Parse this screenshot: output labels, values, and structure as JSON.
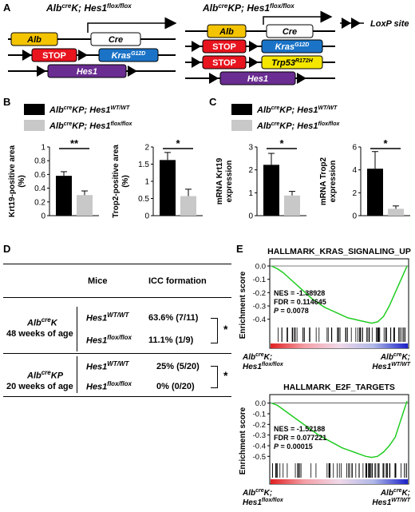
{
  "panel_A": {
    "letter": "A",
    "left_title_pre": "Alb",
    "left_title_sup": "cre",
    "left_title_post": "K; Hes1",
    "left_title_sup2": "flox/flox",
    "right_title_pre": "Alb",
    "right_title_sup": "cre",
    "right_title_post": "KP; Hes1",
    "right_title_sup2": "flox/flox",
    "loxp_label": "LoxP site",
    "boxes": {
      "alb": "Alb",
      "cre": "Cre",
      "stop": "STOP",
      "kras": "Kras",
      "kras_sup": "G12D",
      "trp53": "Trp53",
      "trp53_sup": "R172H",
      "hes1": "Hes1"
    },
    "colors": {
      "alb": "#f5c400",
      "stop": "#e8141e",
      "kras": "#1a73c7",
      "trp53": "#f5e600",
      "hes1": "#6a2d91"
    }
  },
  "legend_B": {
    "letter": "B",
    "item1_pre": "Alb",
    "item1_sup": "cre",
    "item1_post": "KP; Hes1",
    "item1_sup2": "WT/WT",
    "item2_pre": "Alb",
    "item2_sup": "cre",
    "item2_post": "KP; Hes1",
    "item2_sup2": "flox/flox"
  },
  "legend_C": {
    "letter": "C",
    "item1_pre": "Alb",
    "item1_sup": "cre",
    "item1_post": "KP; Hes1",
    "item1_sup2": "WT/WT",
    "item2_pre": "Alb",
    "item2_sup": "cre",
    "item2_post": "KP; Hes1",
    "item2_sup2": "flox/flox"
  },
  "chart_data": [
    {
      "type": "bar",
      "panel": "B-left",
      "categories": [
        "Hes1 WT/WT",
        "Hes1 flox/flox"
      ],
      "values": [
        0.58,
        0.3
      ],
      "errors": [
        0.06,
        0.06
      ],
      "ylabel": "Krt19-positive area (%)",
      "ylim": [
        0,
        1
      ],
      "yticks": [
        "0",
        "0.2",
        "0.4",
        "0.6",
        "0.8",
        "1"
      ],
      "significance": "**",
      "colors": [
        "#000000",
        "#c8c8c8"
      ]
    },
    {
      "type": "bar",
      "panel": "B-right",
      "categories": [
        "Hes1 WT/WT",
        "Hes1 flox/flox"
      ],
      "values": [
        1.62,
        0.57
      ],
      "errors": [
        0.22,
        0.2
      ],
      "ylabel": "Trop2-positive area (%)",
      "ylim": [
        0,
        2
      ],
      "yticks": [
        "0",
        "0.5",
        "1",
        "1.5",
        "2"
      ],
      "significance": "*",
      "colors": [
        "#000000",
        "#c8c8c8"
      ]
    },
    {
      "type": "bar",
      "panel": "C-left",
      "categories": [
        "Hes1 WT/WT",
        "Hes1 flox/flox"
      ],
      "values": [
        2.22,
        0.88
      ],
      "errors": [
        0.5,
        0.18
      ],
      "ylabel": "mRNA Krt19 expression",
      "ylim": [
        0,
        3
      ],
      "yticks": [
        "0",
        "1",
        "2",
        "3"
      ],
      "significance": "*",
      "colors": [
        "#000000",
        "#c8c8c8"
      ]
    },
    {
      "type": "bar",
      "panel": "C-right",
      "categories": [
        "Hes1 WT/WT",
        "Hes1 flox/flox"
      ],
      "values": [
        4.1,
        0.6
      ],
      "errors": [
        1.5,
        0.25
      ],
      "ylabel": "mRNA Trop2 expression",
      "ylim": [
        0,
        6
      ],
      "yticks": [
        "0",
        "2",
        "4",
        "6"
      ],
      "significance": "*",
      "colors": [
        "#000000",
        "#c8c8c8"
      ]
    }
  ],
  "panel_D": {
    "letter": "D",
    "col_mice": "Mice",
    "col_icc": "ICC formation",
    "group1_pre": "Alb",
    "group1_sup": "cre",
    "group1_post": "K",
    "group1_age": "48 weeks of age",
    "group2_pre": "Alb",
    "group2_sup": "cre",
    "group2_post": "KP",
    "group2_age": "20 weeks of age",
    "rows": [
      {
        "gene": "Hes1",
        "sup": "WT/WT",
        "value": "63.6% (7/11)"
      },
      {
        "gene": "Hes1",
        "sup": "flox/flox",
        "value": "11.1% (1/9)"
      },
      {
        "gene": "Hes1",
        "sup": "WT/WT",
        "value": "25% (5/20)"
      },
      {
        "gene": "Hes1",
        "sup": "flox/flox",
        "value": "0% (0/20)"
      }
    ],
    "sig1": "*",
    "sig2": "*"
  },
  "panel_E": {
    "letter": "E",
    "gsea": [
      {
        "title": "HALLMARK_KRAS_SIGNALING_UP",
        "ylabel": "Enrichment score",
        "yticks": [
          "0.0",
          "-0.1",
          "-0.2",
          "-0.3",
          "-0.4"
        ],
        "ylim": [
          -0.45,
          0.03
        ],
        "nes": "NES = -1.38928",
        "fdr": "FDR = 0.114645",
        "p_label": "P",
        "p_value": " = 0.0078",
        "curve": [
          0,
          -0.02,
          -0.05,
          -0.09,
          -0.13,
          -0.17,
          -0.21,
          -0.25,
          -0.28,
          -0.31,
          -0.33,
          -0.35,
          -0.37,
          -0.39,
          -0.4,
          -0.41,
          -0.42,
          -0.43,
          -0.42,
          -0.38,
          -0.3,
          -0.2,
          -0.1,
          0.0
        ],
        "left_label_pre": "Alb",
        "left_label_sup": "cre",
        "left_label_post": "K;",
        "left_label2": "Hes1",
        "left_label2_sup": "flox/flox",
        "right_label_pre": "Alb",
        "right_label_sup": "cre",
        "right_label_post": "K;",
        "right_label2": "Hes1",
        "right_label2_sup": "WT/WT"
      },
      {
        "title": "HALLMARK_E2F_TARGETS",
        "ylabel": "Enrichment score",
        "yticks": [
          "0.0",
          "-0.1",
          "-0.2",
          "-0.3",
          "-0.4",
          "-0.5"
        ],
        "ylim": [
          -0.55,
          0.05
        ],
        "nes": "NES = -1.52188",
        "fdr": "FDR = 0.077221",
        "p_label": "P",
        "p_value": " = 0.00015",
        "curve": [
          0,
          -0.02,
          -0.06,
          -0.1,
          -0.14,
          -0.18,
          -0.22,
          -0.26,
          -0.3,
          -0.33,
          -0.36,
          -0.39,
          -0.42,
          -0.44,
          -0.46,
          -0.48,
          -0.5,
          -0.51,
          -0.5,
          -0.46,
          -0.4,
          -0.32,
          -0.15,
          0.02
        ],
        "left_label_pre": "Alb",
        "left_label_sup": "cre",
        "left_label_post": "K;",
        "left_label2": "Hes1",
        "left_label2_sup": "flox/flox",
        "right_label_pre": "Alb",
        "right_label_sup": "cre",
        "right_label_post": "K;",
        "right_label2": "Hes1",
        "right_label2_sup": "WT/WT"
      }
    ]
  }
}
